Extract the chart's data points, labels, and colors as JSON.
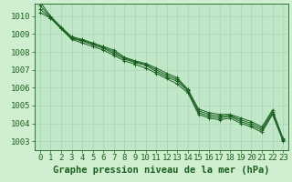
{
  "background_color": "#d0eed0",
  "plot_bg_color": "#c0e8c8",
  "grid_color": "#b0d8b8",
  "line_color": "#1a6020",
  "marker_color": "#1a6020",
  "xlabel": "Graphe pression niveau de la mer (hPa)",
  "xlabel_fontsize": 7.5,
  "xtick_fontsize": 6.5,
  "ytick_fontsize": 6.5,
  "ylim": [
    1002.5,
    1010.7
  ],
  "xlim": [
    -0.5,
    23.5
  ],
  "yticks": [
    1003,
    1004,
    1005,
    1006,
    1007,
    1008,
    1009,
    1010
  ],
  "xticks": [
    0,
    1,
    2,
    3,
    4,
    5,
    6,
    7,
    8,
    9,
    10,
    11,
    12,
    13,
    14,
    15,
    16,
    17,
    18,
    19,
    20,
    21,
    22,
    23
  ],
  "series": [
    [
      1010.2,
      1009.9,
      1009.3,
      1008.7,
      1008.5,
      1008.3,
      1008.1,
      1007.8,
      1007.5,
      1007.3,
      1007.1,
      1006.8,
      1006.5,
      1006.2,
      1005.7,
      1004.5,
      1004.3,
      1004.2,
      1004.3,
      1004.0,
      1003.8,
      1003.5,
      1004.5,
      1003.0
    ],
    [
      1010.4,
      1009.9,
      1009.3,
      1008.75,
      1008.6,
      1008.4,
      1008.2,
      1007.9,
      1007.6,
      1007.4,
      1007.25,
      1006.9,
      1006.6,
      1006.35,
      1005.8,
      1004.6,
      1004.4,
      1004.3,
      1004.4,
      1004.1,
      1003.9,
      1003.6,
      1004.55,
      1003.05
    ],
    [
      1010.6,
      1009.95,
      1009.35,
      1008.8,
      1008.65,
      1008.45,
      1008.25,
      1008.0,
      1007.65,
      1007.45,
      1007.3,
      1007.0,
      1006.7,
      1006.45,
      1005.85,
      1004.7,
      1004.5,
      1004.4,
      1004.45,
      1004.2,
      1004.0,
      1003.7,
      1004.65,
      1003.1
    ],
    [
      1010.8,
      1010.0,
      1009.4,
      1008.85,
      1008.7,
      1008.5,
      1008.3,
      1008.1,
      1007.7,
      1007.5,
      1007.35,
      1007.1,
      1006.8,
      1006.55,
      1005.9,
      1004.8,
      1004.6,
      1004.5,
      1004.5,
      1004.3,
      1004.1,
      1003.8,
      1004.75,
      1003.15
    ]
  ]
}
